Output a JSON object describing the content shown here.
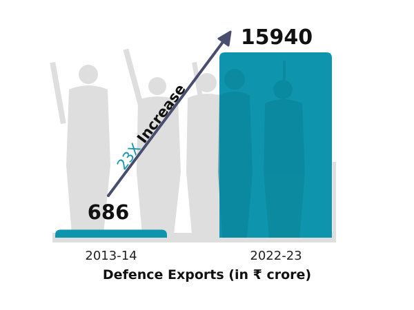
{
  "chart_data": {
    "type": "bar",
    "categories": [
      "2013-14",
      "2022-23"
    ],
    "values": [
      686,
      15940
    ],
    "value_labels": [
      "686",
      "15940"
    ],
    "xlabel": "Defence Exports (in ₹ crore)",
    "annotation": {
      "highlight": "23X",
      "text": " Increase"
    },
    "ylim": [
      0,
      15940
    ],
    "grid": false,
    "colors": {
      "bar": "#0e95ad",
      "arrow": "#4a4e6e",
      "highlight": "#1496ad",
      "silhouette": "#dedede",
      "text": "#111111"
    }
  }
}
